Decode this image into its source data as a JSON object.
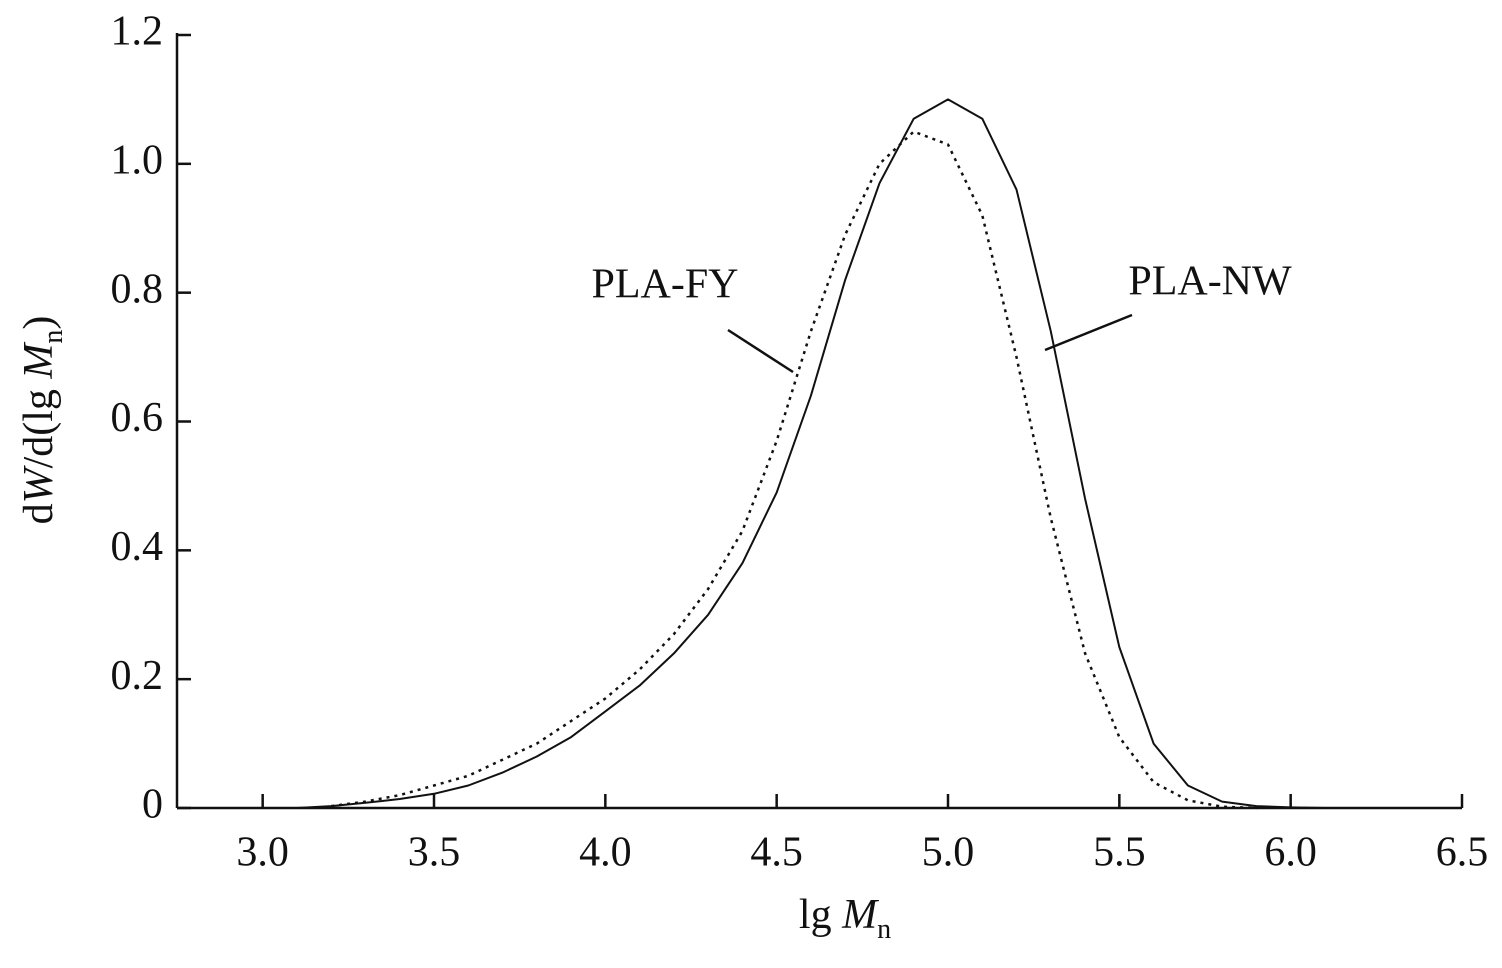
{
  "chart_data": {
    "type": "line",
    "xlabel": [
      "lg ",
      "M",
      "n"
    ],
    "ylabel": [
      "d",
      "W",
      "/d(lg ",
      "M",
      "n",
      ")"
    ],
    "x": [
      3.1,
      3.2,
      3.3,
      3.4,
      3.5,
      3.6,
      3.7,
      3.8,
      3.9,
      4.0,
      4.1,
      4.2,
      4.3,
      4.4,
      4.5,
      4.6,
      4.7,
      4.8,
      4.9,
      5.0,
      5.1,
      5.2,
      5.3,
      5.4,
      5.5,
      5.6,
      5.7,
      5.8,
      5.9,
      6.0,
      6.1
    ],
    "series": [
      {
        "name": "PLA-FY",
        "color": "#111111",
        "dash": "dotted",
        "values": [
          null,
          0.003,
          0.01,
          0.02,
          0.035,
          0.05,
          0.075,
          0.1,
          0.135,
          0.17,
          0.215,
          0.27,
          0.34,
          0.43,
          0.57,
          0.74,
          0.89,
          1.0,
          1.05,
          1.03,
          0.92,
          0.7,
          0.45,
          0.24,
          0.11,
          0.04,
          0.012,
          0.002,
          0,
          null,
          null
        ]
      },
      {
        "name": "PLA-NW",
        "color": "#111111",
        "dash": "solid",
        "values": [
          0,
          0.003,
          0.008,
          0.014,
          0.022,
          0.035,
          0.055,
          0.08,
          0.11,
          0.15,
          0.19,
          0.24,
          0.3,
          0.38,
          0.49,
          0.64,
          0.82,
          0.97,
          1.07,
          1.1,
          1.07,
          0.96,
          0.74,
          0.48,
          0.25,
          0.1,
          0.035,
          0.01,
          0.003,
          0.001,
          0
        ]
      }
    ],
    "xlim": [
      2.75,
      6.5
    ],
    "ylim": [
      0,
      1.2
    ],
    "xticks": [
      {
        "value": 3,
        "label": "3.0"
      },
      3.5,
      {
        "value": 4,
        "label": "4.0"
      },
      4.5,
      {
        "value": 5,
        "label": "5.0"
      },
      5.5,
      {
        "value": 6,
        "label": "6.0"
      },
      6.5
    ],
    "yticks": [
      0,
      0.2,
      0.4,
      0.6,
      0.8,
      {
        "value": 1,
        "label": "1.0"
      },
      1.2
    ],
    "grid": false
  }
}
